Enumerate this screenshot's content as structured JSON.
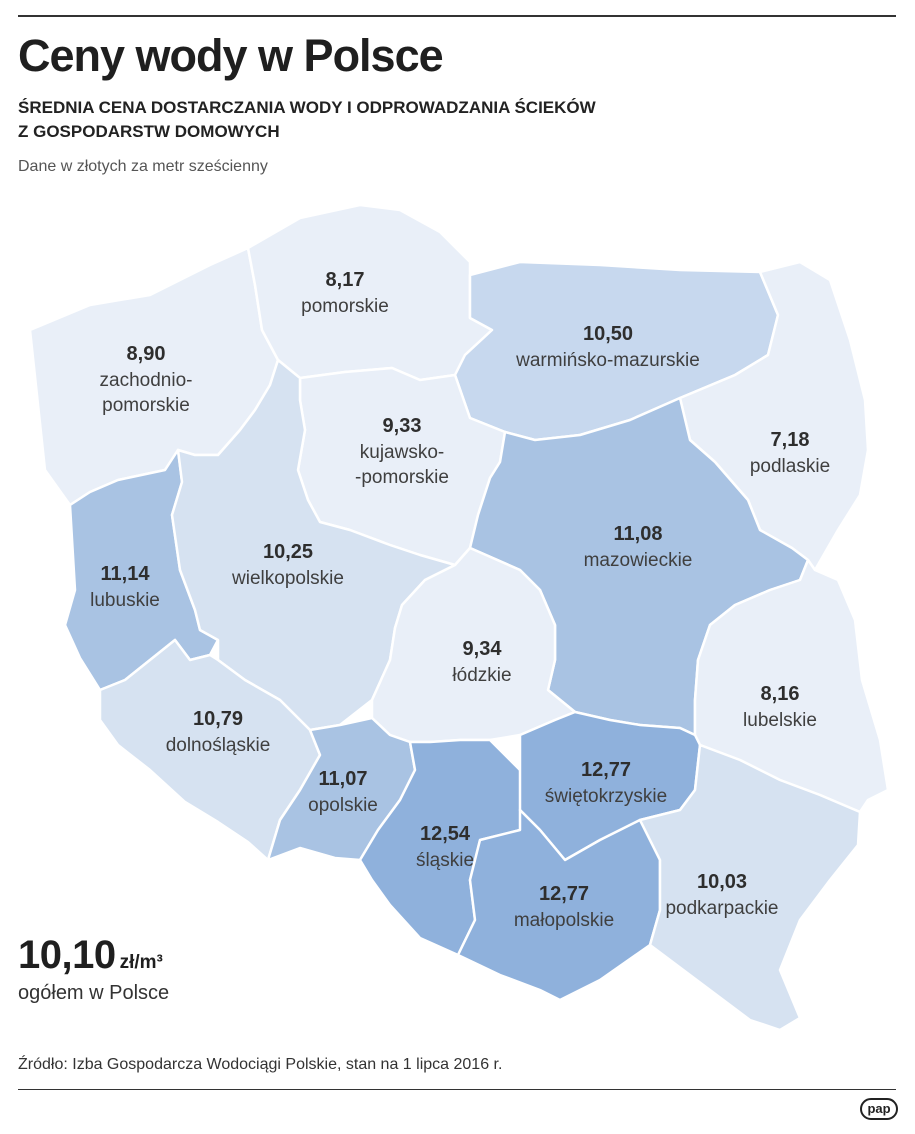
{
  "title": "Ceny wody w Polsce",
  "subtitle_line1": "ŚREDNIA CENA DOSTARCZANIA WODY I ODPROWADZANIA ŚCIEKÓW",
  "subtitle_line2": "Z GOSPODARSTW DOMOWYCH",
  "unit_note": "Dane w złotych za metr sześcienny",
  "colors": {
    "lightest": "#e9eff8",
    "light": "#d6e2f1",
    "medium": "#c7d8ee",
    "darker": "#a9c3e3",
    "dark": "#8fb1dc"
  },
  "regions": [
    {
      "id": "zachodniopomorskie",
      "value": "8,90",
      "name_lines": [
        "zachodnio-",
        "pomorskie"
      ],
      "color": "#e9eff8"
    },
    {
      "id": "pomorskie",
      "value": "8,17",
      "name_lines": [
        "pomorskie"
      ],
      "color": "#e9eff8"
    },
    {
      "id": "warminsko-mazurskie",
      "value": "10,50",
      "name_lines": [
        "warmińsko-mazurskie"
      ],
      "color": "#c7d8ee"
    },
    {
      "id": "podlaskie",
      "value": "7,18",
      "name_lines": [
        "podlaskie"
      ],
      "color": "#e9eff8"
    },
    {
      "id": "kujawsko-pomorskie",
      "value": "9,33",
      "name_lines": [
        "kujawsko-",
        "-pomorskie"
      ],
      "color": "#e9eff8"
    },
    {
      "id": "lubuskie",
      "value": "11,14",
      "name_lines": [
        "lubuskie"
      ],
      "color": "#a9c3e3"
    },
    {
      "id": "wielkopolskie",
      "value": "10,25",
      "name_lines": [
        "wielkopolskie"
      ],
      "color": "#d6e2f1"
    },
    {
      "id": "mazowieckie",
      "value": "11,08",
      "name_lines": [
        "mazowieckie"
      ],
      "color": "#a9c3e3"
    },
    {
      "id": "lodzkie",
      "value": "9,34",
      "name_lines": [
        "łódzkie"
      ],
      "color": "#e9eff8"
    },
    {
      "id": "lubelskie",
      "value": "8,16",
      "name_lines": [
        "lubelskie"
      ],
      "color": "#e9eff8"
    },
    {
      "id": "dolnoslaskie",
      "value": "10,79",
      "name_lines": [
        "dolnośląskie"
      ],
      "color": "#d6e2f1"
    },
    {
      "id": "opolskie",
      "value": "11,07",
      "name_lines": [
        "opolskie"
      ],
      "color": "#a9c3e3"
    },
    {
      "id": "slaskie",
      "value": "12,54",
      "name_lines": [
        "śląskie"
      ],
      "color": "#8fb1dc"
    },
    {
      "id": "swietokrzyskie",
      "value": "12,77",
      "name_lines": [
        "świętokrzyskie"
      ],
      "color": "#8fb1dc"
    },
    {
      "id": "malopolskie",
      "value": "12,77",
      "name_lines": [
        "małopolskie"
      ],
      "color": "#8fb1dc"
    },
    {
      "id": "podkarpackie",
      "value": "10,03",
      "name_lines": [
        "podkarpackie"
      ],
      "color": "#d6e2f1"
    }
  ],
  "total": {
    "value": "10,10",
    "unit": "zł/m³",
    "label": "ogółem w Polsce"
  },
  "source": "Źródło: Izba Gospodarcza Wodociągi Polskie, stan na 1 lipca 2016 r.",
  "logo_text": "pap"
}
